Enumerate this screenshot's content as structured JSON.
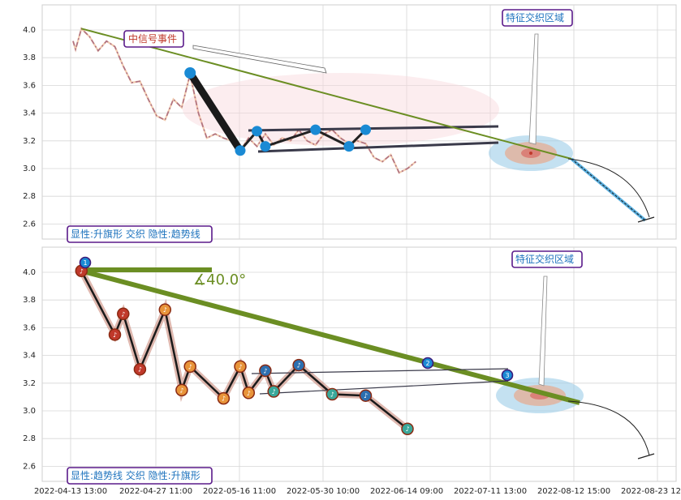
{
  "chart_data": [
    {
      "type": "line",
      "panel": "top",
      "yticks": [
        "4.0",
        "3.8",
        "3.6",
        "3.4",
        "3.2",
        "3.0",
        "2.8",
        "2.6"
      ],
      "ylim": [
        2.52,
        4.17
      ],
      "grid": true,
      "annotations": {
        "event": "中信号事件",
        "zone": "特征交织区域",
        "pattern": "显性:升旗形 交织 隐性:趋势线"
      },
      "price_series": [
        {
          "x": 0,
          "y": 3.92
        },
        {
          "x": 0.3,
          "y": 3.86
        },
        {
          "x": 1,
          "y": 4.01
        },
        {
          "x": 2,
          "y": 3.95
        },
        {
          "x": 3,
          "y": 3.85
        },
        {
          "x": 4,
          "y": 3.92
        },
        {
          "x": 5,
          "y": 3.88
        },
        {
          "x": 6,
          "y": 3.74
        },
        {
          "x": 7,
          "y": 3.62
        },
        {
          "x": 8,
          "y": 3.63
        },
        {
          "x": 9,
          "y": 3.5
        },
        {
          "x": 10,
          "y": 3.38
        },
        {
          "x": 11,
          "y": 3.35
        },
        {
          "x": 12,
          "y": 3.5
        },
        {
          "x": 13,
          "y": 3.44
        },
        {
          "x": 14,
          "y": 3.68
        },
        {
          "x": 15,
          "y": 3.4
        },
        {
          "x": 16,
          "y": 3.22
        },
        {
          "x": 17,
          "y": 3.25
        },
        {
          "x": 18,
          "y": 3.22
        },
        {
          "x": 19,
          "y": 3.2
        },
        {
          "x": 20,
          "y": 3.13
        },
        {
          "x": 21,
          "y": 3.22
        },
        {
          "x": 22,
          "y": 3.16
        },
        {
          "x": 23,
          "y": 3.25
        },
        {
          "x": 24,
          "y": 3.17
        },
        {
          "x": 25,
          "y": 3.22
        },
        {
          "x": 26,
          "y": 3.2
        },
        {
          "x": 27,
          "y": 3.28
        },
        {
          "x": 28,
          "y": 3.2
        },
        {
          "x": 29,
          "y": 3.17
        },
        {
          "x": 30,
          "y": 3.25
        },
        {
          "x": 31,
          "y": 3.28
        },
        {
          "x": 32,
          "y": 3.22
        },
        {
          "x": 33,
          "y": 3.18
        },
        {
          "x": 34,
          "y": 3.2
        },
        {
          "x": 35,
          "y": 3.18
        },
        {
          "x": 36,
          "y": 3.08
        },
        {
          "x": 37,
          "y": 3.05
        },
        {
          "x": 38,
          "y": 3.1
        },
        {
          "x": 39,
          "y": 2.97
        },
        {
          "x": 40,
          "y": 3.0
        },
        {
          "x": 41,
          "y": 3.05
        }
      ],
      "pivots": [
        {
          "x": 14,
          "y": 3.69
        },
        {
          "x": 20,
          "y": 3.13
        },
        {
          "x": 22,
          "y": 3.27
        },
        {
          "x": 23,
          "y": 3.16
        },
        {
          "x": 29,
          "y": 3.28
        },
        {
          "x": 33,
          "y": 3.16
        },
        {
          "x": 35,
          "y": 3.28
        }
      ],
      "trendline": [
        {
          "x": 1,
          "y": 4.01
        },
        {
          "x": 46,
          "y": 2.62
        }
      ]
    },
    {
      "type": "line",
      "panel": "bottom",
      "yticks": [
        "4.0",
        "3.8",
        "3.6",
        "3.4",
        "3.2",
        "3.0",
        "2.8",
        "2.6"
      ],
      "ylim": [
        2.52,
        4.17
      ],
      "grid": true,
      "xticks": [
        "2022-04-13 13:00",
        "2022-04-27 11:00",
        "2022-05-16 11:00",
        "2022-05-30 10:00",
        "2022-06-14 09:00",
        "2022-07-11 13:00",
        "2022-08-12 15:00",
        "2022-08-23 12:00"
      ],
      "annotations": {
        "angle": "∡40.0°",
        "zone": "特征交织区域",
        "pattern": "显性:趋势线 交织 隐性:升旗形"
      },
      "numbered_markers": [
        "1",
        "2",
        "3"
      ],
      "pivots": [
        {
          "x": 1,
          "y": 4.01
        },
        {
          "x": 5,
          "y": 3.55
        },
        {
          "x": 6,
          "y": 3.7
        },
        {
          "x": 8,
          "y": 3.3
        },
        {
          "x": 11,
          "y": 3.73
        },
        {
          "x": 13,
          "y": 3.15
        },
        {
          "x": 14,
          "y": 3.32
        },
        {
          "x": 18,
          "y": 3.09
        },
        {
          "x": 20,
          "y": 3.32
        },
        {
          "x": 21,
          "y": 3.13
        },
        {
          "x": 23,
          "y": 3.29
        },
        {
          "x": 24,
          "y": 3.14
        },
        {
          "x": 27,
          "y": 3.33
        },
        {
          "x": 31,
          "y": 3.12
        },
        {
          "x": 35,
          "y": 3.11
        },
        {
          "x": 40,
          "y": 2.87
        }
      ],
      "trendline": [
        {
          "x": 1,
          "y": 4.01
        },
        {
          "x": 38,
          "y": 3.05
        }
      ]
    }
  ]
}
